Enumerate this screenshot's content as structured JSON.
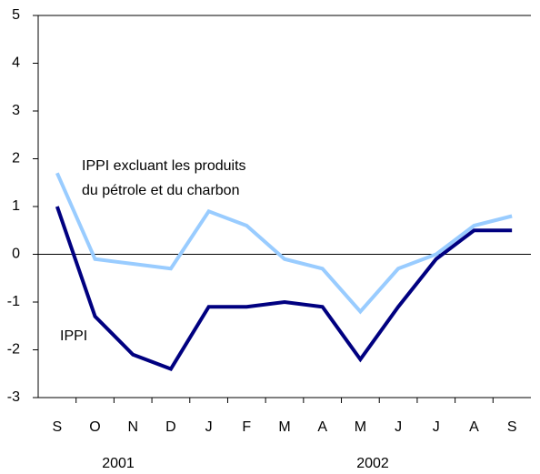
{
  "chart_data": {
    "type": "line",
    "categories": [
      "S",
      "O",
      "N",
      "D",
      "J",
      "F",
      "M",
      "A",
      "M",
      "J",
      "J",
      "A",
      "S"
    ],
    "years": [
      "2001",
      "2002"
    ],
    "series": [
      {
        "name": [
          "IPPI excluant les produits",
          "du pétrole et du charbon"
        ],
        "color": "#99ccff",
        "values": [
          1.7,
          -0.1,
          -0.2,
          -0.3,
          0.9,
          0.6,
          -0.1,
          -0.3,
          -1.2,
          -0.3,
          0.0,
          0.6,
          0.8
        ]
      },
      {
        "name": "IPPI",
        "color": "#000080",
        "values": [
          1.0,
          -1.3,
          -2.1,
          -2.4,
          -1.1,
          -1.1,
          -1.0,
          -1.1,
          -2.2,
          -1.1,
          -0.1,
          0.5,
          0.5
        ]
      }
    ],
    "ylim": [
      -3,
      5
    ],
    "yticks": [
      -3,
      -2,
      -1,
      0,
      1,
      2,
      3,
      4,
      5
    ],
    "grid": false
  }
}
